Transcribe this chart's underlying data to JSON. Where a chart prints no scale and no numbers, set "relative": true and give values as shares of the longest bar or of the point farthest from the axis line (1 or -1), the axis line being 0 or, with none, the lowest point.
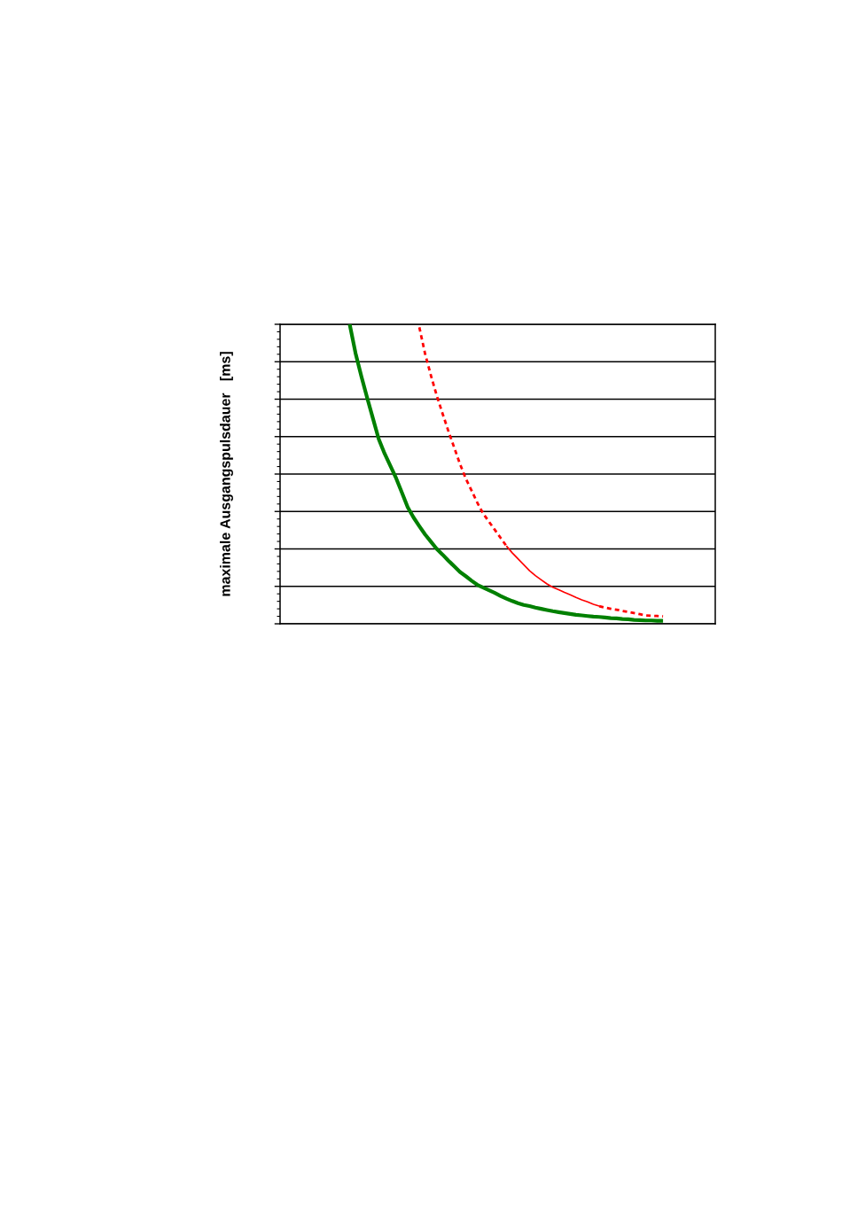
{
  "chart_data": {
    "type": "line",
    "ylabel": "maximale Ausgangspulsdauer   [ms]",
    "relative": true,
    "grid": "y",
    "categories": [
      null,
      null,
      null,
      null,
      null,
      null,
      null,
      null,
      null,
      null,
      null,
      null,
      null,
      null,
      null,
      null,
      null,
      null,
      null,
      null,
      null,
      null,
      null,
      null,
      null,
      null,
      null,
      null,
      null,
      null,
      null,
      null,
      null,
      null,
      null,
      null,
      null,
      null,
      null,
      null,
      null,
      null,
      null,
      null,
      null,
      null,
      null,
      null,
      null,
      null,
      null,
      null,
      null,
      null,
      null,
      null,
      null,
      null,
      null,
      null,
      null,
      null,
      null,
      null,
      null,
      null,
      null,
      null,
      null,
      null,
      null,
      null,
      null,
      null,
      null,
      null
    ],
    "series": [
      {
        "color": "#008000",
        "line_style": "solid",
        "values": [
          null,
          null,
          null,
          null,
          null,
          null,
          null,
          null,
          null,
          null,
          null,
          null,
          1.0,
          0.904,
          0.827,
          0.755,
          0.686,
          0.617,
          0.569,
          0.528,
          0.486,
          0.438,
          0.389,
          0.355,
          0.326,
          0.298,
          0.274,
          0.25,
          0.231,
          0.211,
          0.192,
          0.173,
          0.159,
          0.144,
          0.13,
          0.121,
          0.112,
          0.103,
          0.093,
          0.084,
          0.076,
          0.069,
          0.063,
          0.059,
          0.054,
          0.05,
          0.046,
          0.042,
          0.039,
          0.036,
          0.033,
          0.03,
          0.028,
          0.026,
          0.024,
          0.023,
          0.021,
          0.019,
          0.018,
          0.016,
          0.015,
          0.013,
          0.012,
          0.011,
          0.011,
          0.01,
          0.01,
          null,
          null,
          null,
          null,
          null,
          null,
          null,
          null,
          null
        ]
      },
      {
        "color": "#ff0000",
        "line_style": "dashed",
        "values": [
          null,
          null,
          null,
          null,
          null,
          null,
          null,
          null,
          null,
          null,
          null,
          null,
          null,
          null,
          null,
          null,
          null,
          null,
          null,
          null,
          null,
          null,
          null,
          null,
          0.99,
          0.901,
          0.829,
          0.762,
          0.702,
          0.644,
          0.589,
          0.534,
          0.485,
          0.445,
          0.404,
          0.368,
          0.341,
          0.314,
          0.287,
          0.26,
          null,
          null,
          null,
          null,
          null,
          null,
          null,
          null,
          null,
          null,
          null,
          null,
          null,
          null,
          null,
          0.059,
          0.054,
          0.05,
          0.047,
          0.043,
          0.04,
          0.036,
          0.032,
          0.028,
          0.027,
          0.026,
          0.025,
          null,
          null,
          null,
          null,
          null,
          null,
          null,
          null,
          null
        ]
      },
      {
        "color": "#ff0000",
        "line_style": "solid",
        "values": [
          null,
          null,
          null,
          null,
          null,
          null,
          null,
          null,
          null,
          null,
          null,
          null,
          null,
          null,
          null,
          null,
          null,
          null,
          null,
          null,
          null,
          null,
          null,
          null,
          null,
          null,
          null,
          null,
          null,
          null,
          null,
          null,
          null,
          null,
          null,
          null,
          null,
          null,
          null,
          0.26,
          0.237,
          0.217,
          0.197,
          0.177,
          0.161,
          0.147,
          0.133,
          0.122,
          0.114,
          0.105,
          0.097,
          0.088,
          0.08,
          0.073,
          0.065,
          0.059,
          null,
          null,
          null,
          null,
          null,
          null,
          null,
          null,
          null,
          null,
          null,
          null,
          null,
          null,
          null,
          null,
          null,
          null,
          null,
          null
        ]
      }
    ]
  }
}
